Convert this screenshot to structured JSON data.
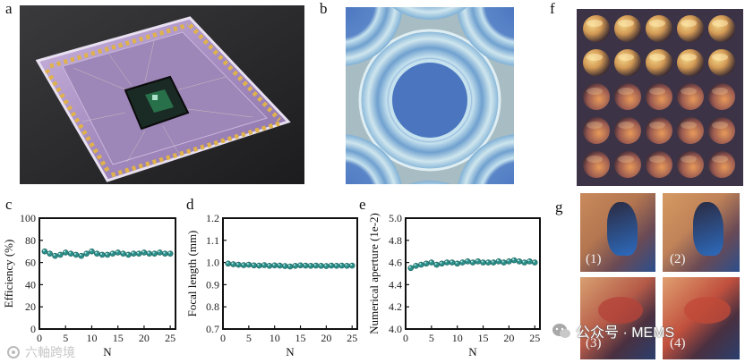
{
  "panels": {
    "a": {
      "label": "a"
    },
    "b": {
      "label": "b"
    },
    "c": {
      "label": "c"
    },
    "d": {
      "label": "d"
    },
    "e": {
      "label": "e"
    },
    "f": {
      "label": "f"
    },
    "g": {
      "label": "g"
    }
  },
  "colors": {
    "marker": "#2b8f8a",
    "marker_highlight": "#b9ece6",
    "axis": "#111111",
    "chip_purple": "#a98fc2",
    "lens_blue": "#4f7fc4",
    "lens_bg": "#a9bcc2"
  },
  "chart_data": [
    {
      "id": "c",
      "type": "scatter",
      "title": "",
      "xlabel": "N",
      "ylabel": "Efficiency (%)",
      "xlim": [
        0,
        26
      ],
      "ylim": [
        0,
        100
      ],
      "xticks": [
        "0",
        "5",
        "10",
        "15",
        "20",
        "25"
      ],
      "yticks": [
        "0",
        "20",
        "40",
        "60",
        "80",
        "100"
      ],
      "x": [
        1,
        2,
        3,
        4,
        5,
        6,
        7,
        8,
        9,
        10,
        11,
        12,
        13,
        14,
        15,
        16,
        17,
        18,
        19,
        20,
        21,
        22,
        23,
        24,
        25
      ],
      "values": [
        70,
        68,
        66,
        67,
        69,
        68,
        67,
        66,
        68,
        70,
        68,
        67,
        67,
        68,
        69,
        68,
        67,
        68,
        68,
        69,
        68,
        68,
        69,
        68,
        68
      ]
    },
    {
      "id": "d",
      "type": "scatter",
      "title": "",
      "xlabel": "N",
      "ylabel": "Focal length (mm)",
      "xlim": [
        0,
        26
      ],
      "ylim": [
        0.7,
        1.2
      ],
      "xticks": [
        "0",
        "5",
        "10",
        "15",
        "20",
        "25"
      ],
      "yticks": [
        "0.7",
        "0.8",
        "0.9",
        "1.0",
        "1.1",
        "1.2"
      ],
      "x": [
        1,
        2,
        3,
        4,
        5,
        6,
        7,
        8,
        9,
        10,
        11,
        12,
        13,
        14,
        15,
        16,
        17,
        18,
        19,
        20,
        21,
        22,
        23,
        24,
        25
      ],
      "values": [
        0.995,
        0.992,
        0.99,
        0.988,
        0.99,
        0.987,
        0.986,
        0.988,
        0.985,
        0.987,
        0.986,
        0.984,
        0.982,
        0.985,
        0.987,
        0.986,
        0.985,
        0.986,
        0.985,
        0.984,
        0.986,
        0.985,
        0.986,
        0.985,
        0.986
      ]
    },
    {
      "id": "e",
      "type": "scatter",
      "title": "",
      "xlabel": "N",
      "ylabel": "Numerical aperture (1e-2)",
      "xlim": [
        0,
        26
      ],
      "ylim": [
        4.0,
        5.0
      ],
      "xticks": [
        "0",
        "5",
        "10",
        "15",
        "20",
        "25"
      ],
      "yticks": [
        "4.0",
        "4.2",
        "4.4",
        "4.6",
        "4.8",
        "5.0"
      ],
      "x": [
        1,
        2,
        3,
        4,
        5,
        6,
        7,
        8,
        9,
        10,
        11,
        12,
        13,
        14,
        15,
        16,
        17,
        18,
        19,
        20,
        21,
        22,
        23,
        24,
        25
      ],
      "values": [
        4.55,
        4.57,
        4.58,
        4.59,
        4.6,
        4.58,
        4.59,
        4.6,
        4.6,
        4.59,
        4.6,
        4.61,
        4.6,
        4.61,
        4.6,
        4.6,
        4.6,
        4.61,
        4.6,
        4.61,
        4.62,
        4.61,
        4.6,
        4.61,
        4.6
      ]
    }
  ],
  "subimages_g": [
    {
      "label": "(1)"
    },
    {
      "label": "(2)"
    },
    {
      "label": "(3)"
    },
    {
      "label": "(4)"
    }
  ],
  "watermark": {
    "left": "六軸跨境",
    "right": "公众号 · MEMS"
  }
}
